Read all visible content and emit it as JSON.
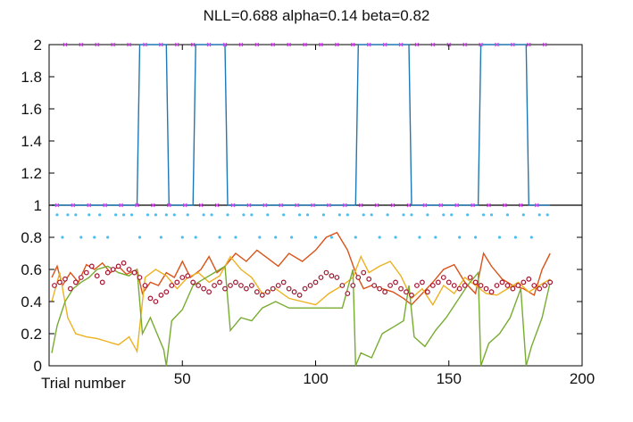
{
  "chart_data": {
    "type": "line",
    "title": "NLL=0.688 alpha=0.14 beta=0.82",
    "xlabel": "Trial number",
    "ylabel": "",
    "xlim": [
      0,
      200
    ],
    "ylim": [
      0,
      2
    ],
    "x_ticks": [
      50,
      100,
      150,
      200
    ],
    "y_ticks": [
      0,
      0.2,
      0.4,
      0.6,
      0.8,
      1,
      1.2,
      1.4,
      1.6,
      1.8,
      2
    ],
    "y_tick_labels": [
      "0",
      "0.2",
      "0.4",
      "0.6",
      "0.8",
      "1",
      "1.2",
      "1.4",
      "1.6",
      "1.8",
      "2"
    ],
    "grid": false,
    "divider_y": 1,
    "series": [
      {
        "color": "#1f77b4",
        "kind": "step",
        "x": [
          1,
          33,
          34,
          44,
          45,
          54,
          55,
          66,
          67,
          115,
          116,
          135,
          136,
          161,
          162,
          179,
          180,
          188
        ],
        "values": [
          1,
          1,
          2,
          2,
          1,
          1,
          2,
          2,
          1,
          1,
          2,
          2,
          1,
          1,
          2,
          2,
          1,
          1
        ]
      },
      {
        "color": "#d95319",
        "kind": "line",
        "x": [
          1,
          3,
          5,
          8,
          11,
          14,
          17,
          20,
          23,
          26,
          29,
          33,
          35,
          38,
          41,
          44,
          47,
          50,
          53,
          57,
          60,
          63,
          66,
          70,
          74,
          78,
          82,
          86,
          90,
          95,
          100,
          104,
          108,
          112,
          115,
          118,
          121,
          125,
          129,
          133,
          136,
          140,
          144,
          148,
          152,
          156,
          160,
          163,
          166,
          170,
          174,
          178,
          182,
          185,
          188
        ],
        "values": [
          0.55,
          0.62,
          0.5,
          0.58,
          0.52,
          0.63,
          0.6,
          0.64,
          0.58,
          0.62,
          0.57,
          0.6,
          0.45,
          0.52,
          0.5,
          0.58,
          0.55,
          0.65,
          0.55,
          0.6,
          0.68,
          0.58,
          0.62,
          0.7,
          0.65,
          0.72,
          0.67,
          0.62,
          0.7,
          0.65,
          0.72,
          0.8,
          0.83,
          0.72,
          0.58,
          0.48,
          0.5,
          0.48,
          0.46,
          0.42,
          0.38,
          0.45,
          0.52,
          0.6,
          0.63,
          0.52,
          0.45,
          0.7,
          0.62,
          0.54,
          0.5,
          0.48,
          0.44,
          0.6,
          0.7
        ]
      },
      {
        "color": "#edb120",
        "kind": "line",
        "x": [
          1,
          4,
          7,
          10,
          14,
          18,
          22,
          26,
          30,
          33,
          36,
          40,
          44,
          48,
          52,
          56,
          60,
          64,
          68,
          72,
          76,
          80,
          85,
          90,
          95,
          100,
          105,
          110,
          114,
          117,
          120,
          124,
          128,
          132,
          136,
          140,
          144,
          148,
          152,
          156,
          160,
          164,
          168,
          172,
          176,
          180,
          184,
          188
        ],
        "values": [
          0.4,
          0.58,
          0.3,
          0.2,
          0.18,
          0.17,
          0.15,
          0.13,
          0.18,
          0.09,
          0.55,
          0.6,
          0.56,
          0.48,
          0.55,
          0.58,
          0.52,
          0.56,
          0.68,
          0.6,
          0.55,
          0.45,
          0.48,
          0.42,
          0.4,
          0.38,
          0.45,
          0.5,
          0.55,
          0.68,
          0.58,
          0.62,
          0.65,
          0.56,
          0.42,
          0.48,
          0.38,
          0.5,
          0.45,
          0.55,
          0.5,
          0.45,
          0.44,
          0.48,
          0.52,
          0.46,
          0.5,
          0.54
        ]
      },
      {
        "color": "#77ac30",
        "kind": "line",
        "x": [
          1,
          3,
          6,
          9,
          12,
          15,
          18,
          22,
          26,
          30,
          33,
          35,
          38,
          41,
          43,
          44,
          46,
          50,
          54,
          58,
          62,
          66,
          68,
          72,
          76,
          80,
          85,
          90,
          95,
          100,
          105,
          110,
          114,
          115,
          117,
          121,
          125,
          129,
          133,
          135,
          137,
          141,
          145,
          149,
          153,
          157,
          161,
          162,
          165,
          169,
          173,
          177,
          179,
          181,
          185,
          188
        ],
        "values": [
          0.08,
          0.25,
          0.4,
          0.48,
          0.52,
          0.55,
          0.6,
          0.62,
          0.58,
          0.56,
          0.6,
          0.2,
          0.3,
          0.18,
          0.1,
          0.0,
          0.28,
          0.35,
          0.5,
          0.54,
          0.58,
          0.62,
          0.22,
          0.3,
          0.28,
          0.36,
          0.4,
          0.36,
          0.36,
          0.36,
          0.36,
          0.36,
          0.6,
          0.0,
          0.08,
          0.05,
          0.2,
          0.24,
          0.28,
          0.5,
          0.18,
          0.12,
          0.22,
          0.3,
          0.4,
          0.5,
          0.58,
          0.0,
          0.14,
          0.2,
          0.3,
          0.48,
          0.0,
          0.12,
          0.3,
          0.52
        ]
      },
      {
        "color": "#a2142f",
        "kind": "markers",
        "x": [
          2,
          4,
          6,
          8,
          10,
          12,
          14,
          16,
          18,
          20,
          22,
          24,
          26,
          28,
          30,
          32,
          34,
          36,
          38,
          40,
          42,
          44,
          46,
          48,
          50,
          52,
          54,
          56,
          58,
          60,
          62,
          64,
          66,
          68,
          70,
          72,
          74,
          76,
          78,
          80,
          82,
          84,
          86,
          88,
          90,
          92,
          94,
          96,
          98,
          100,
          102,
          104,
          106,
          108,
          110,
          112,
          114,
          116,
          118,
          120,
          122,
          124,
          126,
          128,
          130,
          132,
          134,
          136,
          138,
          140,
          142,
          144,
          146,
          148,
          150,
          152,
          154,
          156,
          158,
          160,
          162,
          164,
          166,
          168,
          170,
          172,
          174,
          176,
          178,
          180,
          182,
          184,
          186,
          188
        ],
        "values": [
          0.5,
          0.52,
          0.54,
          0.48,
          0.52,
          0.55,
          0.58,
          0.62,
          0.56,
          0.52,
          0.58,
          0.6,
          0.62,
          0.64,
          0.6,
          0.58,
          0.55,
          0.5,
          0.42,
          0.4,
          0.44,
          0.46,
          0.5,
          0.52,
          0.55,
          0.56,
          0.52,
          0.5,
          0.48,
          0.46,
          0.5,
          0.52,
          0.48,
          0.5,
          0.52,
          0.5,
          0.48,
          0.5,
          0.46,
          0.44,
          0.46,
          0.48,
          0.5,
          0.52,
          0.48,
          0.46,
          0.44,
          0.48,
          0.5,
          0.52,
          0.55,
          0.58,
          0.56,
          0.55,
          0.5,
          0.45,
          0.5,
          0.55,
          0.58,
          0.54,
          0.5,
          0.48,
          0.46,
          0.5,
          0.52,
          0.48,
          0.46,
          0.44,
          0.5,
          0.52,
          0.46,
          0.5,
          0.52,
          0.55,
          0.52,
          0.5,
          0.48,
          0.5,
          0.55,
          0.52,
          0.5,
          0.48,
          0.46,
          0.5,
          0.52,
          0.5,
          0.48,
          0.5,
          0.52,
          0.54,
          0.5,
          0.48,
          0.5,
          0.52
        ]
      },
      {
        "color": "#4dbeee",
        "kind": "dots",
        "x": [
          3,
          5,
          7,
          10,
          12,
          15,
          17,
          19,
          22,
          25,
          28,
          31,
          34,
          37,
          40,
          42,
          44,
          47,
          50,
          52,
          55,
          58,
          61,
          64,
          67,
          70,
          73,
          76,
          79,
          82,
          85,
          88,
          91,
          94,
          97,
          100,
          103,
          106,
          109,
          112,
          115,
          118,
          121,
          124,
          127,
          130,
          133,
          136,
          139,
          142,
          145,
          148,
          151,
          154,
          157,
          160,
          163,
          166,
          169,
          172,
          175,
          178,
          181,
          184,
          187
        ],
        "values": [
          0.94,
          0.8,
          0.94,
          0.94,
          0.8,
          0.94,
          0.8,
          0.94,
          0.8,
          0.94,
          0.94,
          0.94,
          0.8,
          0.94,
          0.94,
          0.8,
          0.94,
          0.94,
          0.8,
          0.94,
          0.8,
          0.94,
          0.94,
          0.8,
          0.94,
          0.8,
          0.94,
          0.94,
          0.8,
          0.94,
          0.8,
          0.94,
          0.8,
          0.94,
          0.94,
          0.8,
          0.94,
          0.8,
          0.94,
          0.94,
          0.8,
          0.94,
          0.94,
          0.8,
          0.94,
          0.8,
          0.94,
          0.94,
          0.8,
          0.94,
          0.8,
          0.94,
          0.94,
          0.8,
          0.94,
          0.8,
          0.94,
          0.94,
          0.8,
          0.94,
          0.8,
          0.94,
          0.8,
          0.94,
          0.94
        ]
      },
      {
        "color": "#e040fb",
        "kind": "ticks",
        "x": [
          3,
          6,
          9,
          12,
          15,
          18,
          21,
          24,
          27,
          30,
          33,
          36,
          39,
          42,
          45,
          48,
          51,
          54,
          57,
          60,
          63,
          66,
          69,
          72,
          75,
          78,
          81,
          84,
          87,
          90,
          93,
          96,
          99,
          102,
          105,
          108,
          111,
          114,
          117,
          120,
          123,
          126,
          129,
          132,
          135,
          138,
          141,
          144,
          147,
          150,
          153,
          156,
          159,
          162,
          165,
          168,
          171,
          174,
          177,
          180,
          183,
          186
        ],
        "values": [
          1,
          2,
          1,
          2,
          1,
          2,
          1,
          2,
          1,
          2,
          1,
          2,
          1,
          2,
          1,
          2,
          1,
          2,
          1,
          2,
          1,
          2,
          1,
          2,
          1,
          2,
          1,
          2,
          1,
          2,
          1,
          2,
          1,
          2,
          1,
          2,
          1,
          2,
          1,
          2,
          1,
          2,
          1,
          2,
          1,
          2,
          1,
          2,
          1,
          2,
          1,
          2,
          1,
          2,
          1,
          2,
          1,
          2,
          1,
          2,
          1,
          2
        ]
      }
    ]
  }
}
